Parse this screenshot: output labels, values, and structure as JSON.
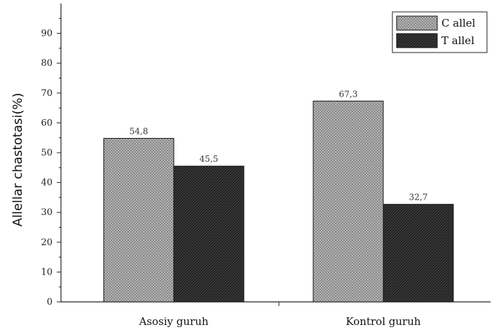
{
  "chart_data": {
    "type": "bar",
    "categories": [
      "Asosiy guruh",
      "Kontrol guruh"
    ],
    "series": [
      {
        "name": "C allel",
        "values": [
          54.8,
          67.3
        ],
        "labels": [
          "54,8",
          "67,3"
        ],
        "pattern": "dotted-hatch",
        "color": "#9a9a9a"
      },
      {
        "name": "T allel",
        "values": [
          45.5,
          32.7
        ],
        "labels": [
          "45,5",
          "32,7"
        ],
        "pattern": "dark-hatch",
        "color": "#2a2a2a"
      }
    ],
    "ylabel": "Allellar chastotasi(%)",
    "xlabel": "",
    "ylim": [
      0,
      100
    ],
    "yticks": [
      0,
      10,
      20,
      30,
      40,
      50,
      60,
      70,
      80,
      90
    ],
    "grid": false,
    "legend": {
      "position": "top-right"
    }
  }
}
